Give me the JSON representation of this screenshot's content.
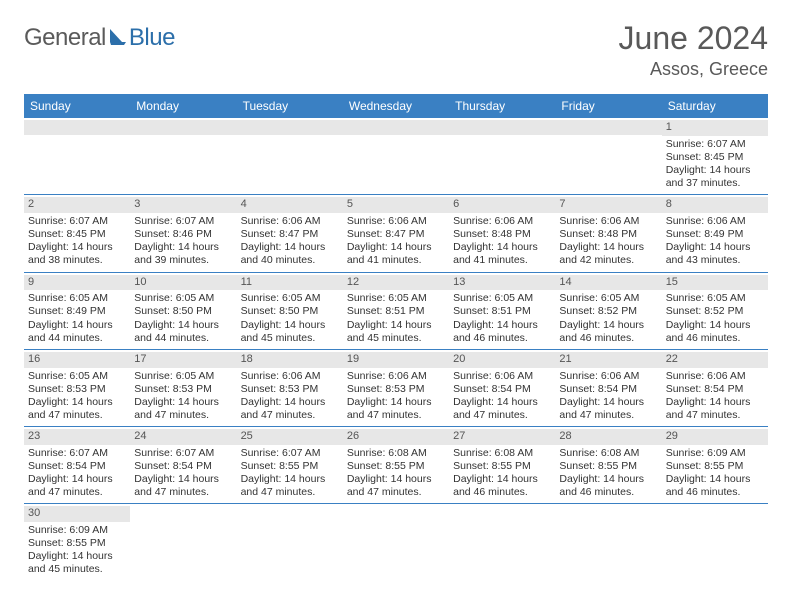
{
  "logo": {
    "part1": "General",
    "part2": "Blue"
  },
  "title": "June 2024",
  "location": "Assos, Greece",
  "colors": {
    "header_bg": "#3a80c3",
    "header_text": "#ffffff",
    "daynum_bg": "#e7e7e7",
    "border": "#3a80c3",
    "title_color": "#595959",
    "logo_gray": "#5a5a5a",
    "logo_blue": "#2c6faa"
  },
  "dayNames": [
    "Sunday",
    "Monday",
    "Tuesday",
    "Wednesday",
    "Thursday",
    "Friday",
    "Saturday"
  ],
  "weeks": [
    [
      null,
      null,
      null,
      null,
      null,
      null,
      {
        "n": "1",
        "sunrise": "Sunrise: 6:07 AM",
        "sunset": "Sunset: 8:45 PM",
        "day1": "Daylight: 14 hours",
        "day2": "and 37 minutes."
      }
    ],
    [
      {
        "n": "2",
        "sunrise": "Sunrise: 6:07 AM",
        "sunset": "Sunset: 8:45 PM",
        "day1": "Daylight: 14 hours",
        "day2": "and 38 minutes."
      },
      {
        "n": "3",
        "sunrise": "Sunrise: 6:07 AM",
        "sunset": "Sunset: 8:46 PM",
        "day1": "Daylight: 14 hours",
        "day2": "and 39 minutes."
      },
      {
        "n": "4",
        "sunrise": "Sunrise: 6:06 AM",
        "sunset": "Sunset: 8:47 PM",
        "day1": "Daylight: 14 hours",
        "day2": "and 40 minutes."
      },
      {
        "n": "5",
        "sunrise": "Sunrise: 6:06 AM",
        "sunset": "Sunset: 8:47 PM",
        "day1": "Daylight: 14 hours",
        "day2": "and 41 minutes."
      },
      {
        "n": "6",
        "sunrise": "Sunrise: 6:06 AM",
        "sunset": "Sunset: 8:48 PM",
        "day1": "Daylight: 14 hours",
        "day2": "and 41 minutes."
      },
      {
        "n": "7",
        "sunrise": "Sunrise: 6:06 AM",
        "sunset": "Sunset: 8:48 PM",
        "day1": "Daylight: 14 hours",
        "day2": "and 42 minutes."
      },
      {
        "n": "8",
        "sunrise": "Sunrise: 6:06 AM",
        "sunset": "Sunset: 8:49 PM",
        "day1": "Daylight: 14 hours",
        "day2": "and 43 minutes."
      }
    ],
    [
      {
        "n": "9",
        "sunrise": "Sunrise: 6:05 AM",
        "sunset": "Sunset: 8:49 PM",
        "day1": "Daylight: 14 hours",
        "day2": "and 44 minutes."
      },
      {
        "n": "10",
        "sunrise": "Sunrise: 6:05 AM",
        "sunset": "Sunset: 8:50 PM",
        "day1": "Daylight: 14 hours",
        "day2": "and 44 minutes."
      },
      {
        "n": "11",
        "sunrise": "Sunrise: 6:05 AM",
        "sunset": "Sunset: 8:50 PM",
        "day1": "Daylight: 14 hours",
        "day2": "and 45 minutes."
      },
      {
        "n": "12",
        "sunrise": "Sunrise: 6:05 AM",
        "sunset": "Sunset: 8:51 PM",
        "day1": "Daylight: 14 hours",
        "day2": "and 45 minutes."
      },
      {
        "n": "13",
        "sunrise": "Sunrise: 6:05 AM",
        "sunset": "Sunset: 8:51 PM",
        "day1": "Daylight: 14 hours",
        "day2": "and 46 minutes."
      },
      {
        "n": "14",
        "sunrise": "Sunrise: 6:05 AM",
        "sunset": "Sunset: 8:52 PM",
        "day1": "Daylight: 14 hours",
        "day2": "and 46 minutes."
      },
      {
        "n": "15",
        "sunrise": "Sunrise: 6:05 AM",
        "sunset": "Sunset: 8:52 PM",
        "day1": "Daylight: 14 hours",
        "day2": "and 46 minutes."
      }
    ],
    [
      {
        "n": "16",
        "sunrise": "Sunrise: 6:05 AM",
        "sunset": "Sunset: 8:53 PM",
        "day1": "Daylight: 14 hours",
        "day2": "and 47 minutes."
      },
      {
        "n": "17",
        "sunrise": "Sunrise: 6:05 AM",
        "sunset": "Sunset: 8:53 PM",
        "day1": "Daylight: 14 hours",
        "day2": "and 47 minutes."
      },
      {
        "n": "18",
        "sunrise": "Sunrise: 6:06 AM",
        "sunset": "Sunset: 8:53 PM",
        "day1": "Daylight: 14 hours",
        "day2": "and 47 minutes."
      },
      {
        "n": "19",
        "sunrise": "Sunrise: 6:06 AM",
        "sunset": "Sunset: 8:53 PM",
        "day1": "Daylight: 14 hours",
        "day2": "and 47 minutes."
      },
      {
        "n": "20",
        "sunrise": "Sunrise: 6:06 AM",
        "sunset": "Sunset: 8:54 PM",
        "day1": "Daylight: 14 hours",
        "day2": "and 47 minutes."
      },
      {
        "n": "21",
        "sunrise": "Sunrise: 6:06 AM",
        "sunset": "Sunset: 8:54 PM",
        "day1": "Daylight: 14 hours",
        "day2": "and 47 minutes."
      },
      {
        "n": "22",
        "sunrise": "Sunrise: 6:06 AM",
        "sunset": "Sunset: 8:54 PM",
        "day1": "Daylight: 14 hours",
        "day2": "and 47 minutes."
      }
    ],
    [
      {
        "n": "23",
        "sunrise": "Sunrise: 6:07 AM",
        "sunset": "Sunset: 8:54 PM",
        "day1": "Daylight: 14 hours",
        "day2": "and 47 minutes."
      },
      {
        "n": "24",
        "sunrise": "Sunrise: 6:07 AM",
        "sunset": "Sunset: 8:54 PM",
        "day1": "Daylight: 14 hours",
        "day2": "and 47 minutes."
      },
      {
        "n": "25",
        "sunrise": "Sunrise: 6:07 AM",
        "sunset": "Sunset: 8:55 PM",
        "day1": "Daylight: 14 hours",
        "day2": "and 47 minutes."
      },
      {
        "n": "26",
        "sunrise": "Sunrise: 6:08 AM",
        "sunset": "Sunset: 8:55 PM",
        "day1": "Daylight: 14 hours",
        "day2": "and 47 minutes."
      },
      {
        "n": "27",
        "sunrise": "Sunrise: 6:08 AM",
        "sunset": "Sunset: 8:55 PM",
        "day1": "Daylight: 14 hours",
        "day2": "and 46 minutes."
      },
      {
        "n": "28",
        "sunrise": "Sunrise: 6:08 AM",
        "sunset": "Sunset: 8:55 PM",
        "day1": "Daylight: 14 hours",
        "day2": "and 46 minutes."
      },
      {
        "n": "29",
        "sunrise": "Sunrise: 6:09 AM",
        "sunset": "Sunset: 8:55 PM",
        "day1": "Daylight: 14 hours",
        "day2": "and 46 minutes."
      }
    ],
    [
      {
        "n": "30",
        "sunrise": "Sunrise: 6:09 AM",
        "sunset": "Sunset: 8:55 PM",
        "day1": "Daylight: 14 hours",
        "day2": "and 45 minutes."
      },
      null,
      null,
      null,
      null,
      null,
      null
    ]
  ]
}
